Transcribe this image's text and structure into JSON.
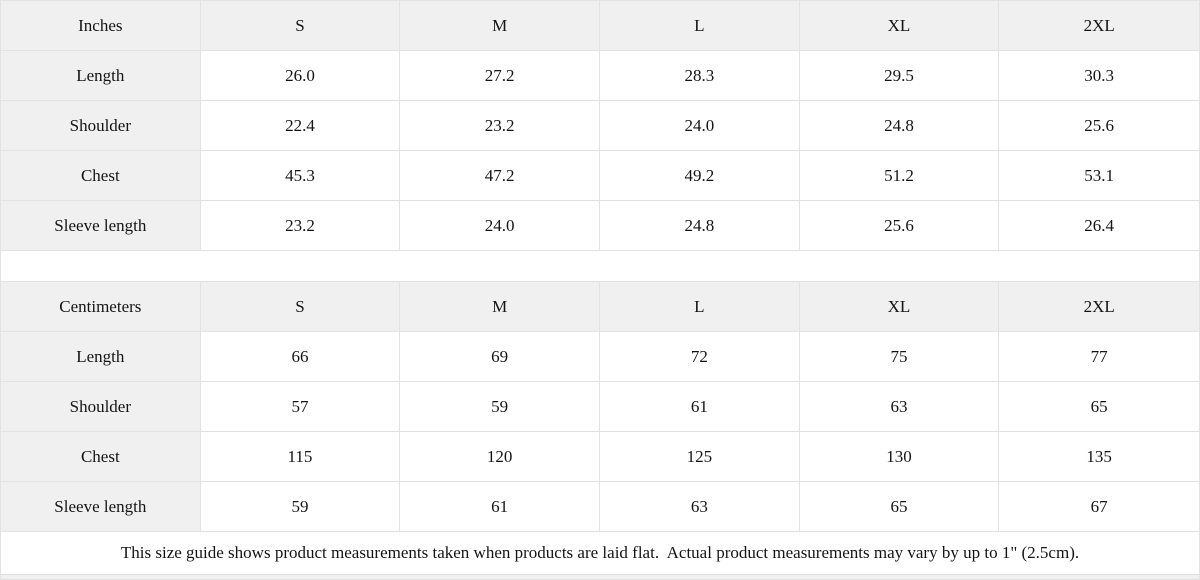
{
  "colors": {
    "header_bg": "#f0f0f0",
    "border": "#e2e2e2",
    "text": "#141414"
  },
  "chart_data": [
    {
      "type": "table",
      "title": "Inches",
      "columns": [
        "Inches",
        "S",
        "M",
        "L",
        "XL",
        "2XL"
      ],
      "rows": [
        [
          "Length",
          "26.0",
          "27.2",
          "28.3",
          "29.5",
          "30.3"
        ],
        [
          "Shoulder",
          "22.4",
          "23.2",
          "24.0",
          "24.8",
          "25.6"
        ],
        [
          "Chest",
          "45.3",
          "47.2",
          "49.2",
          "51.2",
          "53.1"
        ],
        [
          "Sleeve length",
          "23.2",
          "24.0",
          "24.8",
          "25.6",
          "26.4"
        ]
      ]
    },
    {
      "type": "table",
      "title": "Centimeters",
      "columns": [
        "Centimeters",
        "S",
        "M",
        "L",
        "XL",
        "2XL"
      ],
      "rows": [
        [
          "Length",
          "66",
          "69",
          "72",
          "75",
          "77"
        ],
        [
          "Shoulder",
          "57",
          "59",
          "61",
          "63",
          "65"
        ],
        [
          "Chest",
          "115",
          "120",
          "125",
          "130",
          "135"
        ],
        [
          "Sleeve length",
          "59",
          "61",
          "63",
          "65",
          "67"
        ]
      ]
    }
  ],
  "footer_note": "This size guide shows product measurements taken when products are laid flat.  Actual product measurements may vary by up to 1\" (2.5cm)."
}
